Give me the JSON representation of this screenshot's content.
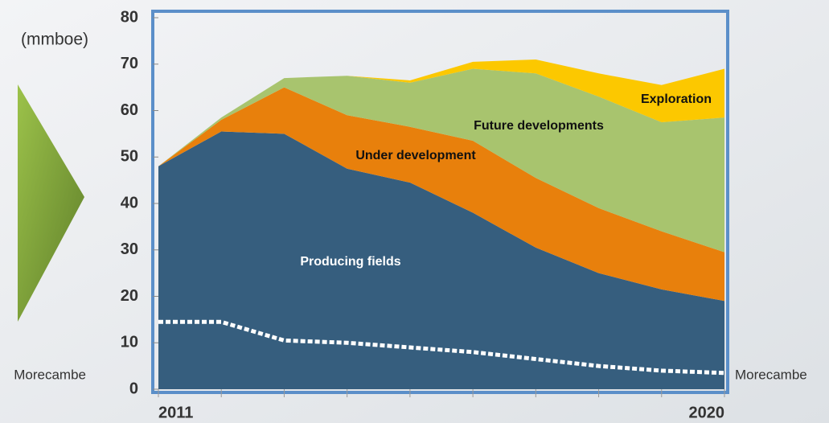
{
  "chart_data": {
    "type": "stacked-area",
    "y_label": "(mmboe)",
    "categories": [
      "2011",
      null,
      null,
      null,
      null,
      null,
      null,
      null,
      null,
      "2020"
    ],
    "ylim": [
      0,
      80
    ],
    "yticks": [
      0,
      10,
      20,
      30,
      40,
      50,
      60,
      70,
      80
    ],
    "series": [
      {
        "name": "Producing fields",
        "color": "#365e7e",
        "values": [
          48,
          55.5,
          55,
          47.5,
          44.5,
          38,
          30.5,
          25,
          21.5,
          19
        ]
      },
      {
        "name": "Under development",
        "color": "#e8800c",
        "values": [
          0,
          2.5,
          10,
          11.5,
          12,
          15.5,
          15,
          14,
          12.5,
          10.5
        ]
      },
      {
        "name": "Future developments",
        "color": "#a8c46e",
        "values": [
          0,
          0.5,
          2,
          8.5,
          9.5,
          15.5,
          22.5,
          24,
          23.5,
          29
        ]
      },
      {
        "name": "Exploration",
        "color": "#fcc800",
        "values": [
          0,
          0,
          0,
          0,
          0.5,
          1.5,
          3,
          5,
          8,
          10.5
        ]
      },
      {
        "name": "Morecambe",
        "type": "line",
        "color": "#ffffff",
        "values": [
          14.5,
          14.5,
          10.5,
          10,
          9,
          8,
          6.5,
          5,
          4,
          3.5
        ]
      }
    ]
  }
}
